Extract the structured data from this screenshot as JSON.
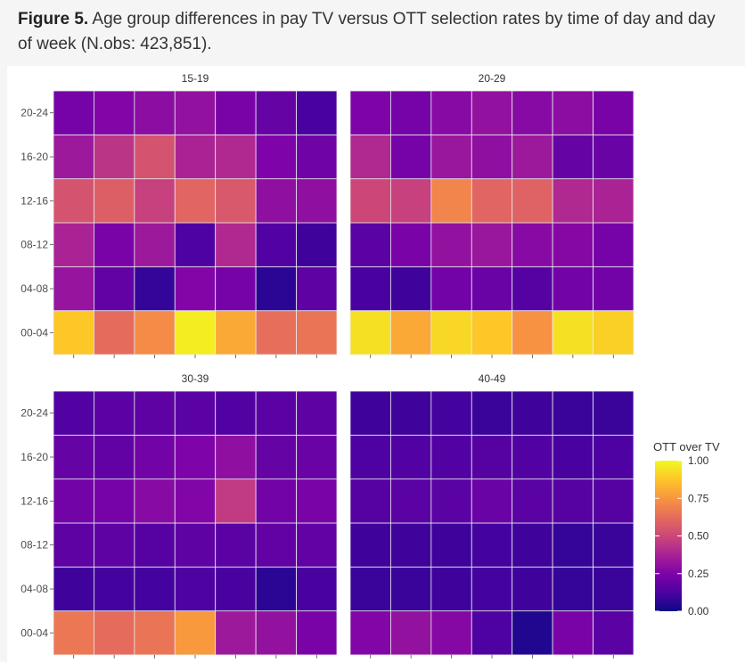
{
  "figure": {
    "label": "Figure 5.",
    "caption": "Age group differences in pay TV versus OTT selection rates by time of day and day of week (N.obs: 423,851)."
  },
  "chart_data": {
    "type": "heatmap",
    "colormap": "plasma",
    "value_range": [
      0,
      1
    ],
    "y_categories": [
      "00-04",
      "04-08",
      "08-12",
      "12-16",
      "16-20",
      "20-24"
    ],
    "x_count": 7,
    "legend": {
      "title": "OTT over TV",
      "ticks": [
        "0.00",
        "0.25",
        "0.50",
        "0.75",
        "1.00"
      ],
      "position": "right"
    },
    "panels": [
      {
        "title": "15-19",
        "values": [
          [
            0.88,
            0.62,
            0.72,
            0.97,
            0.8,
            0.63,
            0.65
          ],
          [
            0.32,
            0.18,
            0.08,
            0.26,
            0.23,
            0.06,
            0.17
          ],
          [
            0.38,
            0.24,
            0.34,
            0.13,
            0.4,
            0.14,
            0.1
          ],
          [
            0.54,
            0.58,
            0.48,
            0.6,
            0.56,
            0.3,
            0.3
          ],
          [
            0.34,
            0.44,
            0.54,
            0.38,
            0.4,
            0.25,
            0.21
          ],
          [
            0.23,
            0.26,
            0.29,
            0.31,
            0.24,
            0.19,
            0.12
          ]
        ]
      },
      {
        "title": "20-29",
        "values": [
          [
            0.94,
            0.8,
            0.92,
            0.88,
            0.74,
            0.94,
            0.9
          ],
          [
            0.12,
            0.1,
            0.22,
            0.2,
            0.15,
            0.22,
            0.22
          ],
          [
            0.16,
            0.24,
            0.31,
            0.33,
            0.28,
            0.27,
            0.23
          ],
          [
            0.5,
            0.48,
            0.7,
            0.6,
            0.59,
            0.4,
            0.38
          ],
          [
            0.4,
            0.23,
            0.33,
            0.3,
            0.34,
            0.19,
            0.2
          ],
          [
            0.25,
            0.23,
            0.28,
            0.31,
            0.28,
            0.29,
            0.24
          ]
        ]
      },
      {
        "title": "30-39",
        "values": [
          [
            0.66,
            0.62,
            0.65,
            0.76,
            0.34,
            0.31,
            0.24
          ],
          [
            0.1,
            0.11,
            0.11,
            0.13,
            0.12,
            0.06,
            0.12
          ],
          [
            0.17,
            0.17,
            0.15,
            0.17,
            0.16,
            0.18,
            0.18
          ],
          [
            0.22,
            0.23,
            0.28,
            0.26,
            0.46,
            0.22,
            0.24
          ],
          [
            0.19,
            0.18,
            0.22,
            0.25,
            0.3,
            0.19,
            0.2
          ],
          [
            0.14,
            0.16,
            0.17,
            0.16,
            0.14,
            0.16,
            0.17
          ]
        ]
      },
      {
        "title": "40-49",
        "values": [
          [
            0.26,
            0.31,
            0.27,
            0.13,
            0.04,
            0.24,
            0.16
          ],
          [
            0.09,
            0.09,
            0.1,
            0.11,
            0.1,
            0.08,
            0.09
          ],
          [
            0.1,
            0.1,
            0.1,
            0.11,
            0.1,
            0.08,
            0.09
          ],
          [
            0.15,
            0.16,
            0.16,
            0.2,
            0.16,
            0.15,
            0.15
          ],
          [
            0.13,
            0.14,
            0.14,
            0.15,
            0.14,
            0.12,
            0.13
          ],
          [
            0.1,
            0.1,
            0.11,
            0.09,
            0.1,
            0.09,
            0.09
          ]
        ]
      }
    ]
  }
}
